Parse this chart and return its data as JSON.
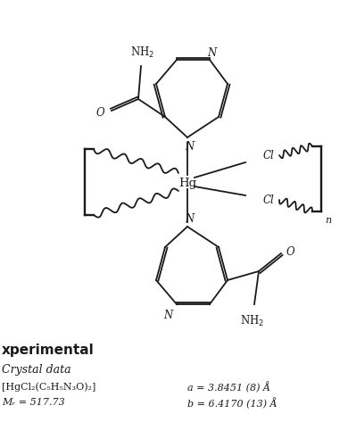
{
  "bg_color": "#ffffff",
  "text_color": "#1a1a1a",
  "section_heading": "xperimental",
  "subsection": "Crystal data",
  "left_col_1": "[HgCl₂(C₅H₅N₃O)₂]",
  "left_col_2": "Mᵣ = 517.73",
  "right_col_1": "a = 3.8451 (8) Å",
  "right_col_2": "b = 6.4170 (13) Å"
}
